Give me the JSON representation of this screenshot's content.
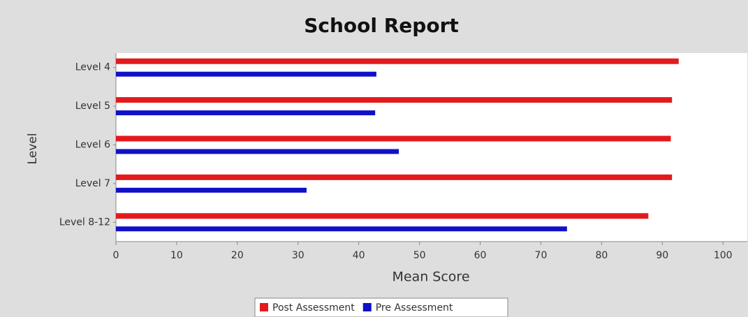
{
  "chart_data": {
    "type": "barh",
    "title": "School Report",
    "xlabel": "Mean Score",
    "ylabel": "Level",
    "categories": [
      "Level 4",
      "Level 5",
      "Level 6",
      "Level 7",
      "Level 8-12"
    ],
    "series": [
      {
        "name": "Post Assessment",
        "color": "#e31a1c",
        "values": [
          92.7,
          91.6,
          91.4,
          91.6,
          87.7
        ]
      },
      {
        "name": "Pre Assessment",
        "color": "#1010c8",
        "values": [
          42.9,
          42.7,
          46.6,
          31.4,
          74.3
        ]
      }
    ],
    "xlim": [
      0,
      104
    ],
    "xticks": [
      0,
      10,
      20,
      30,
      40,
      50,
      60,
      70,
      80,
      90,
      100
    ],
    "legend": "bottom"
  }
}
